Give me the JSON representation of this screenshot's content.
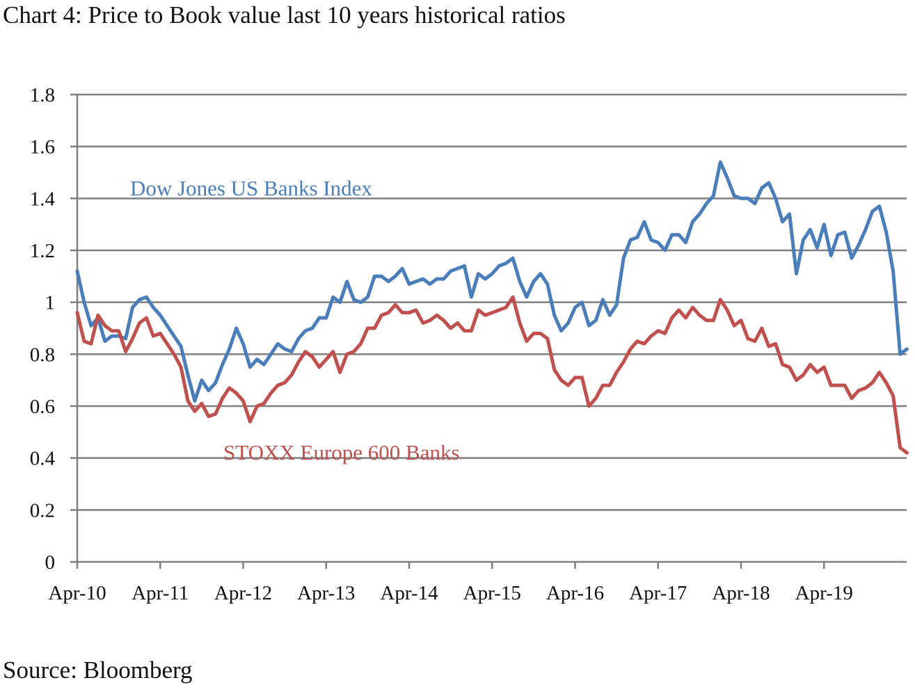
{
  "title": "Chart 4: Price to Book value last 10 years historical ratios",
  "source": "Source: Bloomberg",
  "chart_data": {
    "type": "line",
    "title": "Chart 4: Price to Book value last 10 years historical ratios",
    "xlabel": "",
    "ylabel": "",
    "ylim": [
      0,
      1.8
    ],
    "xlim": [
      "2010-04",
      "2020-03"
    ],
    "y_ticks": [
      "0",
      "0.2",
      "0.4",
      "0.6",
      "0.8",
      "1",
      "1.2",
      "1.4",
      "1.6",
      "1.8"
    ],
    "x_tick_labels": [
      "Apr-10",
      "Apr-11",
      "Apr-12",
      "Apr-13",
      "Apr-14",
      "Apr-15",
      "Apr-16",
      "Apr-17",
      "Apr-18",
      "Apr-19"
    ],
    "grid": "horizontal",
    "legend": "inline labels",
    "series": [
      {
        "name": "Dow Jones US Banks Index",
        "color": "#4a7ebb",
        "points": [
          [
            "2010-04",
            1.12
          ],
          [
            "2010-05",
            1.0
          ],
          [
            "2010-06",
            0.91
          ],
          [
            "2010-07",
            0.94
          ],
          [
            "2010-08",
            0.85
          ],
          [
            "2010-09",
            0.87
          ],
          [
            "2010-10",
            0.87
          ],
          [
            "2010-11",
            0.86
          ],
          [
            "2010-12",
            0.98
          ],
          [
            "2011-01",
            1.01
          ],
          [
            "2011-02",
            1.02
          ],
          [
            "2011-03",
            0.98
          ],
          [
            "2011-04",
            0.95
          ],
          [
            "2011-05",
            0.91
          ],
          [
            "2011-06",
            0.87
          ],
          [
            "2011-07",
            0.83
          ],
          [
            "2011-08",
            0.72
          ],
          [
            "2011-09",
            0.62
          ],
          [
            "2011-10",
            0.7
          ],
          [
            "2011-11",
            0.66
          ],
          [
            "2011-12",
            0.69
          ],
          [
            "2012-01",
            0.76
          ],
          [
            "2012-02",
            0.82
          ],
          [
            "2012-03",
            0.9
          ],
          [
            "2012-04",
            0.84
          ],
          [
            "2012-05",
            0.75
          ],
          [
            "2012-06",
            0.78
          ],
          [
            "2012-07",
            0.76
          ],
          [
            "2012-08",
            0.8
          ],
          [
            "2012-09",
            0.84
          ],
          [
            "2012-10",
            0.82
          ],
          [
            "2012-11",
            0.81
          ],
          [
            "2012-12",
            0.86
          ],
          [
            "2013-01",
            0.89
          ],
          [
            "2013-02",
            0.9
          ],
          [
            "2013-03",
            0.94
          ],
          [
            "2013-04",
            0.94
          ],
          [
            "2013-05",
            1.02
          ],
          [
            "2013-06",
            1.0
          ],
          [
            "2013-07",
            1.08
          ],
          [
            "2013-08",
            1.01
          ],
          [
            "2013-09",
            1.0
          ],
          [
            "2013-10",
            1.02
          ],
          [
            "2013-11",
            1.1
          ],
          [
            "2013-12",
            1.1
          ],
          [
            "2014-01",
            1.08
          ],
          [
            "2014-02",
            1.1
          ],
          [
            "2014-03",
            1.13
          ],
          [
            "2014-04",
            1.07
          ],
          [
            "2014-05",
            1.08
          ],
          [
            "2014-06",
            1.09
          ],
          [
            "2014-07",
            1.07
          ],
          [
            "2014-08",
            1.09
          ],
          [
            "2014-09",
            1.09
          ],
          [
            "2014-10",
            1.12
          ],
          [
            "2014-11",
            1.13
          ],
          [
            "2014-12",
            1.14
          ],
          [
            "2015-01",
            1.02
          ],
          [
            "2015-02",
            1.11
          ],
          [
            "2015-03",
            1.09
          ],
          [
            "2015-04",
            1.11
          ],
          [
            "2015-05",
            1.14
          ],
          [
            "2015-06",
            1.15
          ],
          [
            "2015-07",
            1.17
          ],
          [
            "2015-08",
            1.08
          ],
          [
            "2015-09",
            1.02
          ],
          [
            "2015-10",
            1.08
          ],
          [
            "2015-11",
            1.11
          ],
          [
            "2015-12",
            1.07
          ],
          [
            "2016-01",
            0.95
          ],
          [
            "2016-02",
            0.89
          ],
          [
            "2016-03",
            0.92
          ],
          [
            "2016-04",
            0.98
          ],
          [
            "2016-05",
            1.0
          ],
          [
            "2016-06",
            0.91
          ],
          [
            "2016-07",
            0.93
          ],
          [
            "2016-08",
            1.01
          ],
          [
            "2016-09",
            0.95
          ],
          [
            "2016-10",
            0.99
          ],
          [
            "2016-11",
            1.17
          ],
          [
            "2016-12",
            1.24
          ],
          [
            "2017-01",
            1.25
          ],
          [
            "2017-02",
            1.31
          ],
          [
            "2017-03",
            1.24
          ],
          [
            "2017-04",
            1.23
          ],
          [
            "2017-05",
            1.2
          ],
          [
            "2017-06",
            1.26
          ],
          [
            "2017-07",
            1.26
          ],
          [
            "2017-08",
            1.23
          ],
          [
            "2017-09",
            1.31
          ],
          [
            "2017-10",
            1.34
          ],
          [
            "2017-11",
            1.38
          ],
          [
            "2017-12",
            1.41
          ],
          [
            "2018-01",
            1.54
          ],
          [
            "2018-02",
            1.48
          ],
          [
            "2018-03",
            1.41
          ],
          [
            "2018-04",
            1.4
          ],
          [
            "2018-05",
            1.4
          ],
          [
            "2018-06",
            1.38
          ],
          [
            "2018-07",
            1.44
          ],
          [
            "2018-08",
            1.46
          ],
          [
            "2018-09",
            1.4
          ],
          [
            "2018-10",
            1.31
          ],
          [
            "2018-11",
            1.34
          ],
          [
            "2018-12",
            1.11
          ],
          [
            "2019-01",
            1.24
          ],
          [
            "2019-02",
            1.28
          ],
          [
            "2019-03",
            1.21
          ],
          [
            "2019-04",
            1.3
          ],
          [
            "2019-05",
            1.18
          ],
          [
            "2019-06",
            1.26
          ],
          [
            "2019-07",
            1.27
          ],
          [
            "2019-08",
            1.17
          ],
          [
            "2019-09",
            1.22
          ],
          [
            "2019-10",
            1.28
          ],
          [
            "2019-11",
            1.35
          ],
          [
            "2019-12",
            1.37
          ],
          [
            "2020-01",
            1.27
          ],
          [
            "2020-02",
            1.12
          ],
          [
            "2020-03",
            0.8
          ],
          [
            "2020-04",
            0.82
          ]
        ]
      },
      {
        "name": "STOXX Europe 600 Banks",
        "color": "#c0504d",
        "points": [
          [
            "2010-04",
            0.96
          ],
          [
            "2010-05",
            0.85
          ],
          [
            "2010-06",
            0.84
          ],
          [
            "2010-07",
            0.95
          ],
          [
            "2010-08",
            0.91
          ],
          [
            "2010-09",
            0.89
          ],
          [
            "2010-10",
            0.89
          ],
          [
            "2010-11",
            0.81
          ],
          [
            "2010-12",
            0.86
          ],
          [
            "2011-01",
            0.92
          ],
          [
            "2011-02",
            0.94
          ],
          [
            "2011-03",
            0.87
          ],
          [
            "2011-04",
            0.88
          ],
          [
            "2011-05",
            0.84
          ],
          [
            "2011-06",
            0.8
          ],
          [
            "2011-07",
            0.75
          ],
          [
            "2011-08",
            0.62
          ],
          [
            "2011-09",
            0.58
          ],
          [
            "2011-10",
            0.61
          ],
          [
            "2011-11",
            0.56
          ],
          [
            "2011-12",
            0.57
          ],
          [
            "2012-01",
            0.63
          ],
          [
            "2012-02",
            0.67
          ],
          [
            "2012-03",
            0.65
          ],
          [
            "2012-04",
            0.62
          ],
          [
            "2012-05",
            0.54
          ],
          [
            "2012-06",
            0.6
          ],
          [
            "2012-07",
            0.61
          ],
          [
            "2012-08",
            0.65
          ],
          [
            "2012-09",
            0.68
          ],
          [
            "2012-10",
            0.69
          ],
          [
            "2012-11",
            0.72
          ],
          [
            "2012-12",
            0.77
          ],
          [
            "2013-01",
            0.81
          ],
          [
            "2013-02",
            0.79
          ],
          [
            "2013-03",
            0.75
          ],
          [
            "2013-04",
            0.78
          ],
          [
            "2013-05",
            0.81
          ],
          [
            "2013-06",
            0.73
          ],
          [
            "2013-07",
            0.8
          ],
          [
            "2013-08",
            0.81
          ],
          [
            "2013-09",
            0.84
          ],
          [
            "2013-10",
            0.9
          ],
          [
            "2013-11",
            0.9
          ],
          [
            "2013-12",
            0.95
          ],
          [
            "2014-01",
            0.96
          ],
          [
            "2014-02",
            0.99
          ],
          [
            "2014-03",
            0.96
          ],
          [
            "2014-04",
            0.96
          ],
          [
            "2014-05",
            0.97
          ],
          [
            "2014-06",
            0.92
          ],
          [
            "2014-07",
            0.93
          ],
          [
            "2014-08",
            0.95
          ],
          [
            "2014-09",
            0.93
          ],
          [
            "2014-10",
            0.9
          ],
          [
            "2014-11",
            0.92
          ],
          [
            "2014-12",
            0.89
          ],
          [
            "2015-01",
            0.89
          ],
          [
            "2015-02",
            0.97
          ],
          [
            "2015-03",
            0.95
          ],
          [
            "2015-04",
            0.96
          ],
          [
            "2015-05",
            0.97
          ],
          [
            "2015-06",
            0.98
          ],
          [
            "2015-07",
            1.02
          ],
          [
            "2015-08",
            0.92
          ],
          [
            "2015-09",
            0.85
          ],
          [
            "2015-10",
            0.88
          ],
          [
            "2015-11",
            0.88
          ],
          [
            "2015-12",
            0.86
          ],
          [
            "2016-01",
            0.74
          ],
          [
            "2016-02",
            0.7
          ],
          [
            "2016-03",
            0.68
          ],
          [
            "2016-04",
            0.71
          ],
          [
            "2016-05",
            0.71
          ],
          [
            "2016-06",
            0.6
          ],
          [
            "2016-07",
            0.63
          ],
          [
            "2016-08",
            0.68
          ],
          [
            "2016-09",
            0.68
          ],
          [
            "2016-10",
            0.73
          ],
          [
            "2016-11",
            0.77
          ],
          [
            "2016-12",
            0.82
          ],
          [
            "2017-01",
            0.85
          ],
          [
            "2017-02",
            0.84
          ],
          [
            "2017-03",
            0.87
          ],
          [
            "2017-04",
            0.89
          ],
          [
            "2017-05",
            0.88
          ],
          [
            "2017-06",
            0.94
          ],
          [
            "2017-07",
            0.97
          ],
          [
            "2017-08",
            0.94
          ],
          [
            "2017-09",
            0.98
          ],
          [
            "2017-10",
            0.95
          ],
          [
            "2017-11",
            0.93
          ],
          [
            "2017-12",
            0.93
          ],
          [
            "2018-01",
            1.01
          ],
          [
            "2018-02",
            0.97
          ],
          [
            "2018-03",
            0.91
          ],
          [
            "2018-04",
            0.93
          ],
          [
            "2018-05",
            0.86
          ],
          [
            "2018-06",
            0.85
          ],
          [
            "2018-07",
            0.9
          ],
          [
            "2018-08",
            0.83
          ],
          [
            "2018-09",
            0.84
          ],
          [
            "2018-10",
            0.76
          ],
          [
            "2018-11",
            0.75
          ],
          [
            "2018-12",
            0.7
          ],
          [
            "2019-01",
            0.72
          ],
          [
            "2019-02",
            0.76
          ],
          [
            "2019-03",
            0.73
          ],
          [
            "2019-04",
            0.75
          ],
          [
            "2019-05",
            0.68
          ],
          [
            "2019-06",
            0.68
          ],
          [
            "2019-07",
            0.68
          ],
          [
            "2019-08",
            0.63
          ],
          [
            "2019-09",
            0.66
          ],
          [
            "2019-10",
            0.67
          ],
          [
            "2019-11",
            0.69
          ],
          [
            "2019-12",
            0.73
          ],
          [
            "2020-01",
            0.69
          ],
          [
            "2020-02",
            0.64
          ],
          [
            "2020-03",
            0.44
          ],
          [
            "2020-04",
            0.42
          ]
        ]
      }
    ]
  },
  "series_labels": {
    "dj": "Dow Jones US Banks Index",
    "stoxx": "STOXX Europe 600 Banks"
  },
  "colors": {
    "axis": "#7f7f7f",
    "grid": "#7f7f7f",
    "dj": "#4a7ebb",
    "stoxx": "#c0504d"
  }
}
